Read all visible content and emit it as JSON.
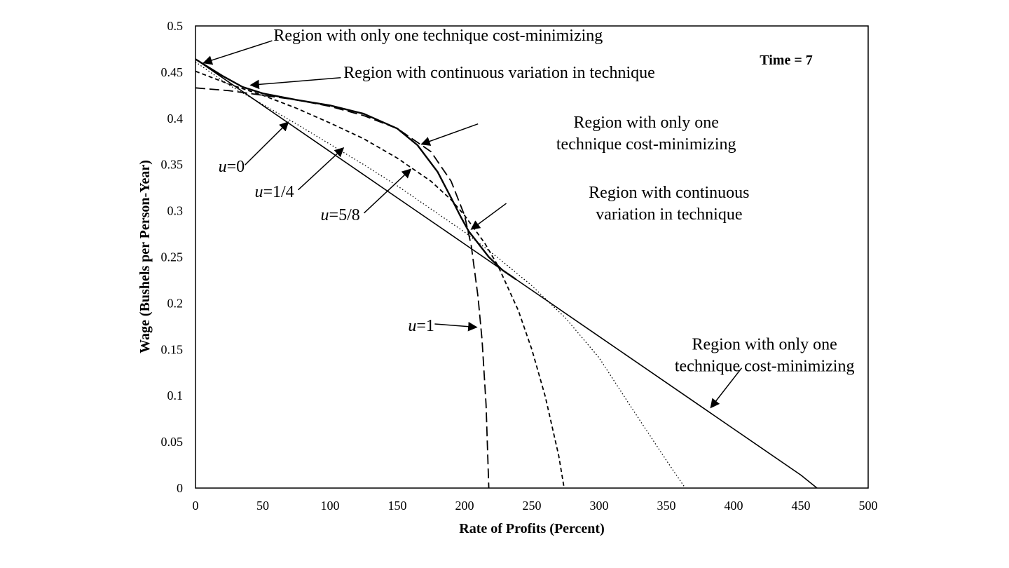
{
  "chart_data": {
    "type": "line",
    "title": "",
    "xlabel": "Rate of Profits (Percent)",
    "ylabel": "Wage (Bushels per Person-Year)",
    "xlim": [
      0,
      500
    ],
    "ylim": [
      0,
      0.5
    ],
    "x_ticks": [
      "0",
      "50",
      "100",
      "150",
      "200",
      "250",
      "300",
      "350",
      "400",
      "450",
      "500"
    ],
    "y_ticks": [
      "0",
      "0.05",
      "0.1",
      "0.15",
      "0.2",
      "0.25",
      "0.3",
      "0.35",
      "0.4",
      "0.45",
      "0.5"
    ],
    "grid": false,
    "time_label": "Time = 7",
    "series": [
      {
        "name": "u=0",
        "style": "solid-thin",
        "x": [
          0,
          50,
          100,
          150,
          200,
          250,
          300,
          350,
          400,
          450,
          462
        ],
        "y": [
          0.464,
          0.414,
          0.364,
          0.314,
          0.264,
          0.214,
          0.164,
          0.114,
          0.064,
          0.014,
          0
        ]
      },
      {
        "name": "u=1/4",
        "style": "dotted",
        "x": [
          0,
          25,
          50,
          75,
          100,
          125,
          150,
          175,
          200,
          225,
          250,
          275,
          300,
          325,
          350,
          364
        ],
        "y": [
          0.461,
          0.436,
          0.415,
          0.394,
          0.372,
          0.35,
          0.327,
          0.302,
          0.277,
          0.249,
          0.219,
          0.184,
          0.141,
          0.085,
          0.03,
          0
        ]
      },
      {
        "name": "u=5/8",
        "style": "dashed",
        "x": [
          0,
          25,
          50,
          75,
          100,
          125,
          150,
          175,
          190,
          200,
          215,
          225,
          240,
          250,
          260,
          270,
          274
        ],
        "y": [
          0.451,
          0.437,
          0.425,
          0.411,
          0.395,
          0.378,
          0.357,
          0.332,
          0.312,
          0.295,
          0.265,
          0.24,
          0.192,
          0.15,
          0.099,
          0.035,
          0
        ]
      },
      {
        "name": "u=1",
        "style": "long-dashed",
        "x": [
          0,
          25,
          50,
          75,
          100,
          125,
          150,
          175,
          190,
          200,
          205,
          210,
          213,
          216,
          218
        ],
        "y": [
          0.433,
          0.43,
          0.425,
          0.42,
          0.413,
          0.403,
          0.389,
          0.364,
          0.332,
          0.295,
          0.262,
          0.207,
          0.16,
          0.09,
          0
        ]
      },
      {
        "name": "",
        "style": "envelope",
        "x": [
          0,
          20,
          35,
          50,
          75,
          100,
          125,
          150,
          165,
          180,
          190,
          197,
          203,
          210,
          218,
          228,
          238
        ],
        "y": [
          0.464,
          0.446,
          0.434,
          0.427,
          0.42,
          0.414,
          0.405,
          0.389,
          0.371,
          0.342,
          0.314,
          0.294,
          0.278,
          0.265,
          0.25,
          0.236,
          0.226
        ]
      }
    ],
    "curve_labels": [
      {
        "text_var": "u",
        "text_rest": "=0",
        "x": 17,
        "y": 0.342,
        "arrow_to": [
          69,
          0.396
        ]
      },
      {
        "text_var": "u",
        "text_rest": "=1/4",
        "x": 44,
        "y": 0.315,
        "arrow_to": [
          110,
          0.368
        ]
      },
      {
        "text_var": "u",
        "text_rest": "=5/8",
        "x": 93,
        "y": 0.29,
        "arrow_to": [
          160,
          0.345
        ]
      },
      {
        "text_var": "u",
        "text_rest": "=1",
        "x": 158,
        "y": 0.17,
        "arrow_to": [
          209,
          0.174
        ]
      }
    ],
    "annotations": [
      {
        "lines": [
          "Region with only one technique cost-minimizing"
        ],
        "anchor": "start",
        "x": 58,
        "y": 0.484,
        "arrow_from": [
          57,
          0.484
        ],
        "arrow_to": [
          6,
          0.46
        ]
      },
      {
        "lines": [
          "Region with continuous variation in technique"
        ],
        "anchor": "start",
        "x": 110,
        "y": 0.444,
        "arrow_from": [
          108,
          0.444
        ],
        "arrow_to": [
          41,
          0.436
        ]
      },
      {
        "lines": [
          "Region with only one",
          "technique cost-minimizing"
        ],
        "anchor": "middle",
        "x": 335,
        "y": 0.39,
        "arrow_from": [
          210,
          0.394
        ],
        "arrow_to": [
          168,
          0.372
        ]
      },
      {
        "lines": [
          "Region with continuous",
          "variation in technique"
        ],
        "anchor": "middle",
        "x": 352,
        "y": 0.314,
        "arrow_from": [
          231,
          0.308
        ],
        "arrow_to": [
          205,
          0.28
        ]
      },
      {
        "lines": [
          "Region with only one",
          "technique cost-minimizing"
        ],
        "anchor": "middle",
        "x": 423,
        "y": 0.15,
        "arrow_from": [
          406,
          0.13
        ],
        "arrow_to": [
          383,
          0.087
        ]
      }
    ]
  }
}
